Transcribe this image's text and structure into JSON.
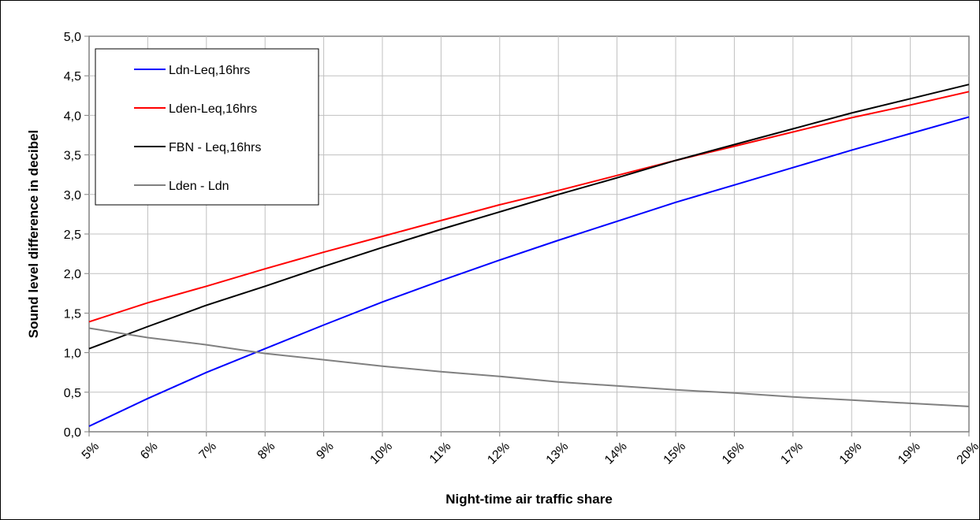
{
  "chart_data": {
    "type": "line",
    "title": "",
    "xlabel": "Night-time air traffic share",
    "ylabel": "Sound level difference in decibel",
    "x": [
      "5%",
      "6%",
      "7%",
      "8%",
      "9%",
      "10%",
      "11%",
      "12%",
      "13%",
      "14%",
      "15%",
      "16%",
      "17%",
      "18%",
      "19%",
      "20%"
    ],
    "y_ticks": [
      "0,0",
      "0,5",
      "1,0",
      "1,5",
      "2,0",
      "2,5",
      "3,0",
      "3,5",
      "4,0",
      "4,5",
      "5,0"
    ],
    "ylim": [
      0,
      5
    ],
    "grid": true,
    "legend_position": "top-left",
    "series": [
      {
        "name": "Ldn-Leq,16hrs",
        "color": "#0000ff",
        "values": [
          0.07,
          0.42,
          0.75,
          1.05,
          1.35,
          1.64,
          1.91,
          2.17,
          2.42,
          2.66,
          2.9,
          3.12,
          3.34,
          3.56,
          3.77,
          3.98
        ]
      },
      {
        "name": "Lden-Leq,16hrs",
        "color": "#ff0000",
        "values": [
          1.39,
          1.63,
          1.84,
          2.06,
          2.27,
          2.47,
          2.67,
          2.87,
          3.05,
          3.24,
          3.43,
          3.61,
          3.79,
          3.97,
          4.13,
          4.3
        ]
      },
      {
        "name": "FBN - Leq,16hrs",
        "color": "#000000",
        "values": [
          1.05,
          1.33,
          1.6,
          1.84,
          2.09,
          2.33,
          2.56,
          2.78,
          3.0,
          3.21,
          3.43,
          3.63,
          3.83,
          4.03,
          4.21,
          4.39
        ]
      },
      {
        "name": "Lden - Ldn",
        "color": "#808080",
        "values": [
          1.31,
          1.19,
          1.1,
          0.99,
          0.91,
          0.83,
          0.76,
          0.7,
          0.63,
          0.58,
          0.53,
          0.49,
          0.44,
          0.4,
          0.36,
          0.32
        ]
      }
    ]
  }
}
